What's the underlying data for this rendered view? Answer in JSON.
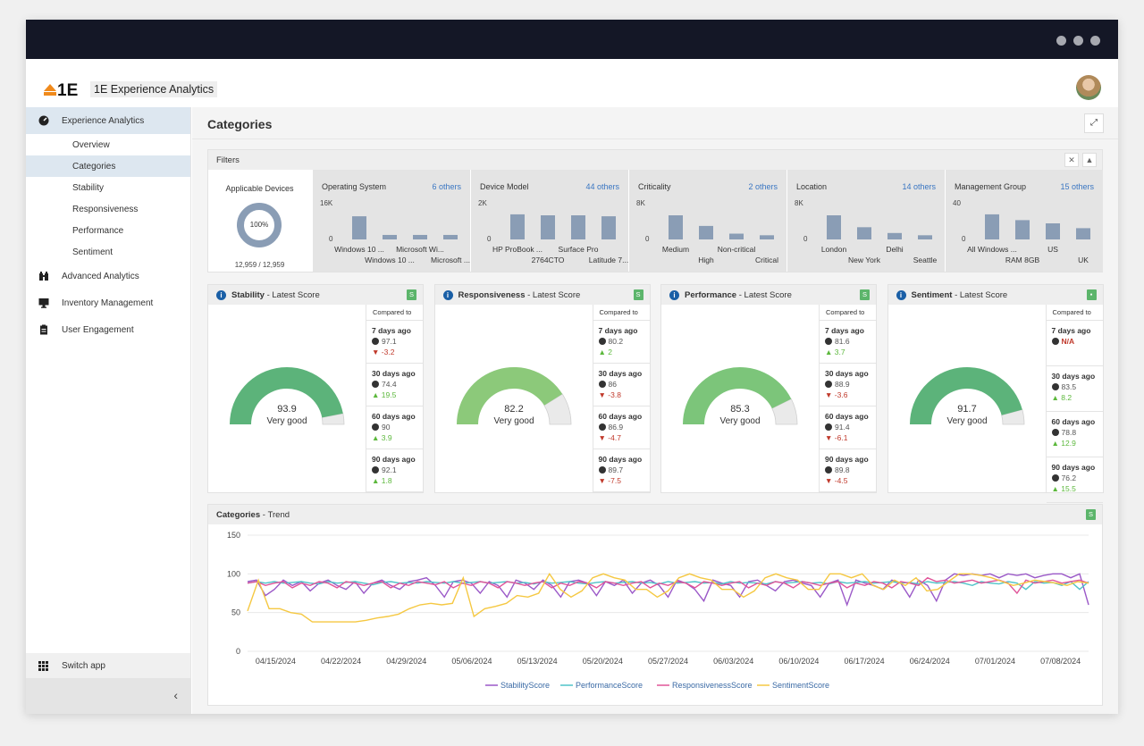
{
  "app": {
    "title": "1E Experience Analytics",
    "logo_text": "1E"
  },
  "sidebar": {
    "sections": [
      {
        "label": "Experience Analytics",
        "icon": "gauge-icon",
        "children": [
          "Overview",
          "Categories",
          "Stability",
          "Responsiveness",
          "Performance",
          "Sentiment"
        ]
      },
      {
        "label": "Advanced Analytics",
        "icon": "binoculars-icon"
      },
      {
        "label": "Inventory Management",
        "icon": "monitor-icon"
      },
      {
        "label": "User Engagement",
        "icon": "clipboard-icon"
      }
    ],
    "switch_app": "Switch app",
    "collapse_icon": "‹"
  },
  "page": {
    "title": "Categories"
  },
  "filters": {
    "title": "Filters",
    "applicable": {
      "title": "Applicable Devices",
      "percent": "100%",
      "count": "12,959 / 12,959"
    },
    "groups": [
      {
        "title": "Operating System",
        "others": "6 others",
        "ymax": "16K",
        "ymin": "0",
        "bars": [
          0.72,
          0.14,
          0.14,
          0.14
        ],
        "labels_top": [
          "Windows 10 ...",
          "Microsoft Wi..."
        ],
        "labels_bottom": [
          "Windows 10 ...",
          "Microsoft ..."
        ]
      },
      {
        "title": "Device Model",
        "others": "44 others",
        "ymax": "2K",
        "ymin": "0",
        "bars": [
          0.78,
          0.75,
          0.75,
          0.72
        ],
        "labels_top": [
          "HP ProBook ...",
          "Surface Pro"
        ],
        "labels_bottom": [
          "2764CTO",
          "Latitude 7..."
        ]
      },
      {
        "title": "Criticality",
        "others": "2 others",
        "ymax": "8K",
        "ymin": "0",
        "bars": [
          0.75,
          0.42,
          0.18,
          0.13
        ],
        "labels_top": [
          "Medium",
          "Non-critical"
        ],
        "labels_bottom": [
          "High",
          "Critical"
        ]
      },
      {
        "title": "Location",
        "others": "14 others",
        "ymax": "8K",
        "ymin": "0",
        "bars": [
          0.75,
          0.38,
          0.2,
          0.13
        ],
        "labels_top": [
          "London",
          "Delhi"
        ],
        "labels_bottom": [
          "New York",
          "Seattle"
        ]
      },
      {
        "title": "Management Group",
        "others": "15 others",
        "ymax": "40",
        "ymin": "0",
        "bars": [
          0.78,
          0.6,
          0.5,
          0.35
        ],
        "labels_top": [
          "All Windows ...",
          "US"
        ],
        "labels_bottom": [
          "RAM 8GB",
          "UK"
        ]
      }
    ]
  },
  "scorecards": [
    {
      "title": "Stability",
      "subtitle": "Latest Score",
      "badge": "S",
      "score": "93.9",
      "fraction": 0.939,
      "rating": "Very good",
      "color": "#5cb37a",
      "compared_label": "Compared to",
      "items": [
        {
          "label": "7 days ago",
          "value": "97.1",
          "delta": "-3.2",
          "dir": "down"
        },
        {
          "label": "30 days ago",
          "value": "74.4",
          "delta": "19.5",
          "dir": "up"
        },
        {
          "label": "60 days ago",
          "value": "90",
          "delta": "3.9",
          "dir": "up"
        },
        {
          "label": "90 days ago",
          "value": "92.1",
          "delta": "1.8",
          "dir": "up"
        }
      ]
    },
    {
      "title": "Responsiveness",
      "subtitle": "Latest Score",
      "badge": "S",
      "score": "82.2",
      "fraction": 0.822,
      "rating": "Very good",
      "color": "#8cc97a",
      "compared_label": "Compared to",
      "items": [
        {
          "label": "7 days ago",
          "value": "80.2",
          "delta": "2",
          "dir": "up"
        },
        {
          "label": "30 days ago",
          "value": "86",
          "delta": "-3.8",
          "dir": "down"
        },
        {
          "label": "60 days ago",
          "value": "86.9",
          "delta": "-4.7",
          "dir": "down"
        },
        {
          "label": "90 days ago",
          "value": "89.7",
          "delta": "-7.5",
          "dir": "down"
        }
      ]
    },
    {
      "title": "Performance",
      "subtitle": "Latest Score",
      "badge": "S",
      "score": "85.3",
      "fraction": 0.853,
      "rating": "Very good",
      "color": "#7cc57a",
      "compared_label": "Compared to",
      "items": [
        {
          "label": "7 days ago",
          "value": "81.6",
          "delta": "3.7",
          "dir": "up"
        },
        {
          "label": "30 days ago",
          "value": "88.9",
          "delta": "-3.6",
          "dir": "down"
        },
        {
          "label": "60 days ago",
          "value": "91.4",
          "delta": "-6.1",
          "dir": "down"
        },
        {
          "label": "90 days ago",
          "value": "89.8",
          "delta": "-4.5",
          "dir": "down"
        }
      ]
    },
    {
      "title": "Sentiment",
      "subtitle": "Latest Score",
      "badge": "▪",
      "score": "91.7",
      "fraction": 0.917,
      "rating": "Very good",
      "color": "#5cb37a",
      "compared_label": "Compared to",
      "items": [
        {
          "label": "7 days ago",
          "value": "N/A",
          "delta": "",
          "dir": "na"
        },
        {
          "label": "30 days ago",
          "value": "83.5",
          "delta": "8.2",
          "dir": "up"
        },
        {
          "label": "60 days ago",
          "value": "78.8",
          "delta": "12.9",
          "dir": "up"
        },
        {
          "label": "90 days ago",
          "value": "76.2",
          "delta": "15.5",
          "dir": "up"
        }
      ]
    }
  ],
  "trend": {
    "title": "Categories",
    "subtitle": "Trend",
    "badge": "S"
  },
  "chart_data": {
    "type": "line",
    "title": "Categories - Trend",
    "ylim": [
      0,
      150
    ],
    "yticks": [
      0,
      50,
      100,
      150
    ],
    "xtick_labels": [
      "04/15/2024",
      "04/22/2024",
      "04/29/2024",
      "05/06/2024",
      "05/13/2024",
      "05/20/2024",
      "05/27/2024",
      "06/03/2024",
      "06/10/2024",
      "06/17/2024",
      "06/24/2024",
      "07/01/2024",
      "07/08/2024"
    ],
    "x_start": "04/12/2024",
    "x_end": "07/11/2024",
    "series": [
      {
        "name": "StabilityScore",
        "color": "#9b59c8",
        "values": [
          90,
          92,
          72,
          80,
          92,
          85,
          90,
          78,
          88,
          92,
          85,
          80,
          90,
          75,
          88,
          92,
          85,
          80,
          90,
          92,
          95,
          85,
          70,
          90,
          92,
          88,
          75,
          90,
          85,
          70,
          92,
          88,
          80,
          92,
          85,
          70,
          90,
          92,
          88,
          72,
          90,
          85,
          92,
          75,
          88,
          92,
          85,
          70,
          92,
          88,
          80,
          65,
          92,
          88,
          85,
          70,
          90,
          92,
          85,
          78,
          90,
          92,
          88,
          85,
          70,
          88,
          92,
          60,
          92,
          88,
          85,
          80,
          92,
          88,
          70,
          92,
          85,
          65,
          92,
          100,
          98,
          100,
          98,
          100,
          95,
          100,
          98,
          100,
          95,
          98,
          100,
          100,
          95,
          100,
          60
        ]
      },
      {
        "name": "PerformanceScore",
        "color": "#4fc3c8",
        "values": [
          88,
          90,
          88,
          90,
          88,
          89,
          90,
          88,
          87,
          90,
          88,
          89,
          90,
          88,
          86,
          89,
          90,
          88,
          89,
          88,
          90,
          89,
          88,
          90,
          88,
          89,
          90,
          88,
          89,
          90,
          88,
          89,
          87,
          90,
          88,
          89,
          90,
          88,
          87,
          89,
          90,
          88,
          89,
          90,
          88,
          89,
          87,
          90,
          88,
          89,
          90,
          88,
          89,
          87,
          90,
          88,
          89,
          88,
          87,
          90,
          88,
          89,
          90,
          88,
          89,
          87,
          90,
          88,
          89,
          90,
          88,
          89,
          90,
          88,
          89,
          87,
          90,
          88,
          89,
          90,
          88,
          85,
          90,
          88,
          87,
          90,
          88,
          80,
          90,
          88,
          89,
          85,
          90,
          80,
          90
        ]
      },
      {
        "name": "ResponsivenessScore",
        "color": "#e05599",
        "values": [
          88,
          90,
          85,
          88,
          90,
          82,
          88,
          85,
          90,
          88,
          82,
          90,
          88,
          85,
          88,
          90,
          82,
          88,
          85,
          90,
          88,
          86,
          90,
          82,
          88,
          85,
          90,
          88,
          82,
          90,
          88,
          85,
          88,
          90,
          82,
          88,
          85,
          90,
          88,
          82,
          90,
          88,
          85,
          88,
          90,
          82,
          88,
          85,
          90,
          88,
          82,
          90,
          88,
          85,
          88,
          90,
          82,
          88,
          85,
          90,
          88,
          82,
          90,
          88,
          85,
          88,
          90,
          82,
          88,
          85,
          90,
          88,
          82,
          90,
          88,
          85,
          95,
          90,
          92,
          88,
          90,
          92,
          88,
          90,
          92,
          88,
          75,
          92,
          88,
          90,
          92,
          88,
          90,
          92,
          88
        ]
      },
      {
        "name": "SentimentScore",
        "color": "#f5c842",
        "values": [
          52,
          92,
          55,
          55,
          50,
          48,
          38,
          38,
          38,
          38,
          38,
          40,
          43,
          45,
          48,
          55,
          60,
          62,
          60,
          62,
          95,
          45,
          55,
          58,
          62,
          72,
          70,
          75,
          100,
          80,
          70,
          78,
          95,
          100,
          95,
          92,
          80,
          80,
          70,
          78,
          95,
          100,
          95,
          92,
          80,
          80,
          70,
          78,
          95,
          100,
          95,
          92,
          80,
          80,
          100,
          100,
          95,
          100,
          85,
          80,
          92,
          85,
          95,
          78,
          80,
          90,
          100,
          100,
          98,
          95,
          90,
          85,
          88,
          92,
          90,
          88,
          85,
          90,
          88
        ]
      }
    ],
    "legend_position": "bottom",
    "grid": "horizontal"
  }
}
